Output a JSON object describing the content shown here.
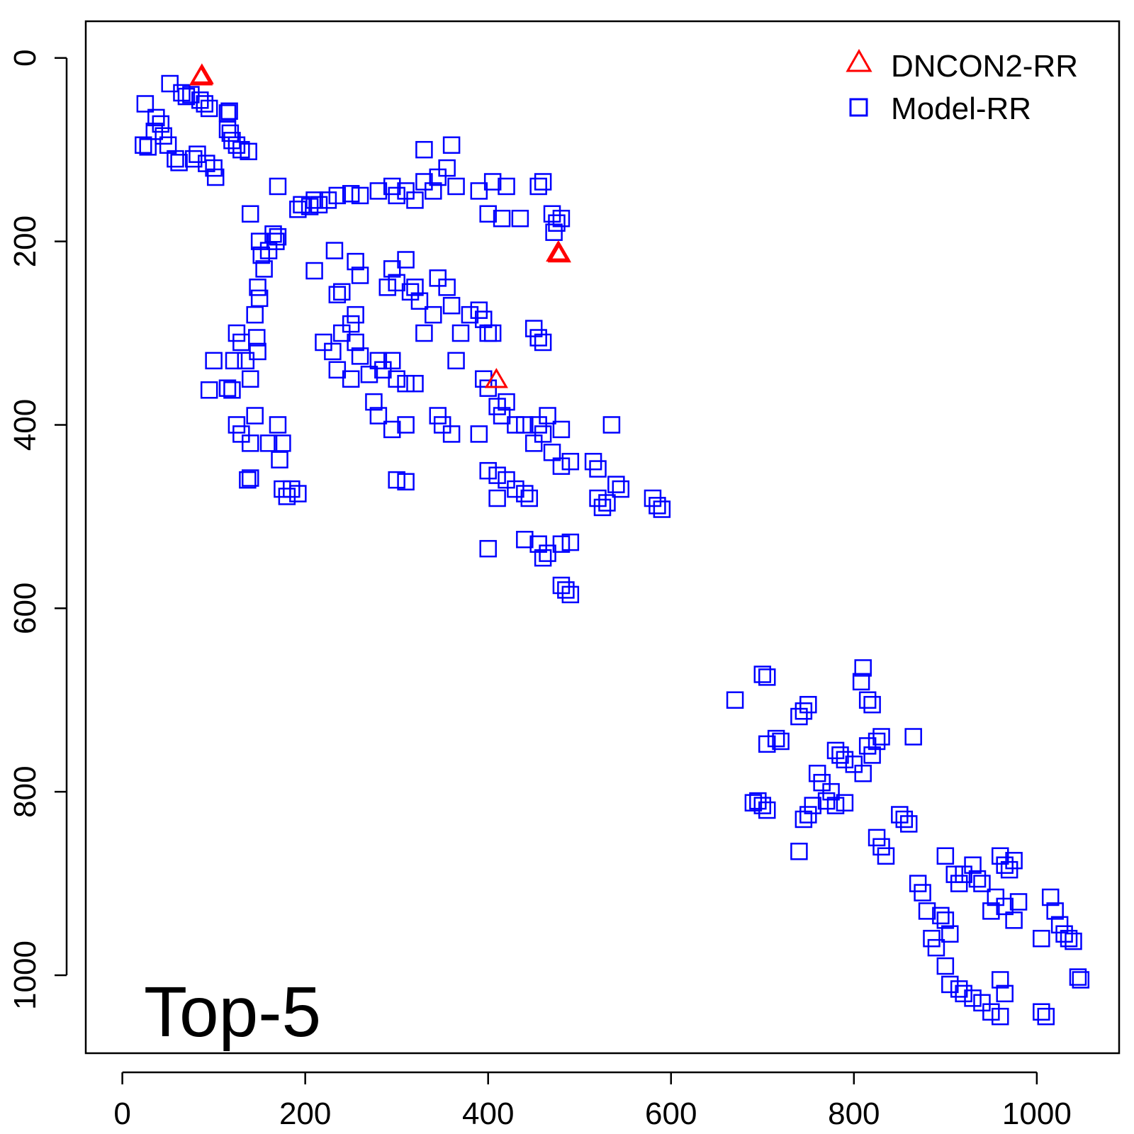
{
  "chart_data": {
    "type": "scatter",
    "title": "",
    "xlabel": "",
    "ylabel": "",
    "xlim": [
      -40,
      1090
    ],
    "ylim": [
      1085,
      -40
    ],
    "y_reversed": true,
    "grid": false,
    "annotation": "Top-5",
    "legend": {
      "position": "top-right"
    },
    "x_ticks": [
      0,
      200,
      400,
      600,
      800,
      1000
    ],
    "y_ticks": [
      0,
      200,
      400,
      600,
      800,
      1000
    ],
    "series": [
      {
        "name": "DNCON2-RR",
        "marker": "triangle",
        "color": "#ff0000",
        "points": [
          [
            87,
            19
          ],
          [
            87,
            20
          ],
          [
            86,
            21
          ],
          [
            477,
            212
          ],
          [
            476,
            213
          ],
          [
            478,
            214
          ],
          [
            409,
            351
          ]
        ]
      },
      {
        "name": "Model-RR",
        "marker": "square",
        "color": "#0000ff",
        "points": [
          [
            25,
            50
          ],
          [
            23,
            95
          ],
          [
            28,
            97
          ],
          [
            35,
            80
          ],
          [
            37,
            65
          ],
          [
            42,
            72
          ],
          [
            45,
            85
          ],
          [
            50,
            95
          ],
          [
            52,
            28
          ],
          [
            58,
            110
          ],
          [
            62,
            114
          ],
          [
            65,
            38
          ],
          [
            70,
            42
          ],
          [
            75,
            40
          ],
          [
            78,
            110
          ],
          [
            82,
            105
          ],
          [
            85,
            46
          ],
          [
            90,
            50
          ],
          [
            92,
            115
          ],
          [
            95,
            55
          ],
          [
            100,
            120
          ],
          [
            102,
            130
          ],
          [
            115,
            60
          ],
          [
            117,
            58
          ],
          [
            115,
            78
          ],
          [
            118,
            82
          ],
          [
            120,
            90
          ],
          [
            125,
            95
          ],
          [
            130,
            100
          ],
          [
            138,
            102
          ],
          [
            140,
            170
          ],
          [
            150,
            200
          ],
          [
            152,
            215
          ],
          [
            155,
            230
          ],
          [
            148,
            250
          ],
          [
            150,
            262
          ],
          [
            145,
            280
          ],
          [
            147,
            305
          ],
          [
            148,
            320
          ],
          [
            125,
            300
          ],
          [
            122,
            330
          ],
          [
            130,
            310
          ],
          [
            135,
            330
          ],
          [
            140,
            350
          ],
          [
            115,
            360
          ],
          [
            120,
            362
          ],
          [
            100,
            330
          ],
          [
            95,
            362
          ],
          [
            125,
            400
          ],
          [
            130,
            410
          ],
          [
            140,
            420
          ],
          [
            145,
            390
          ],
          [
            137,
            460
          ],
          [
            140,
            458
          ],
          [
            160,
            420
          ],
          [
            170,
            400
          ],
          [
            175,
            420
          ],
          [
            172,
            438
          ],
          [
            165,
            192
          ],
          [
            168,
            200
          ],
          [
            160,
            210
          ],
          [
            170,
            195
          ],
          [
            175,
            470
          ],
          [
            180,
            478
          ],
          [
            185,
            470
          ],
          [
            192,
            475
          ],
          [
            170,
            140
          ],
          [
            192,
            165
          ],
          [
            196,
            160
          ],
          [
            205,
            162
          ],
          [
            210,
            155
          ],
          [
            215,
            160
          ],
          [
            225,
            155
          ],
          [
            235,
            150
          ],
          [
            250,
            148
          ],
          [
            260,
            150
          ],
          [
            280,
            145
          ],
          [
            295,
            140
          ],
          [
            300,
            150
          ],
          [
            310,
            145
          ],
          [
            320,
            155
          ],
          [
            330,
            135
          ],
          [
            340,
            145
          ],
          [
            345,
            130
          ],
          [
            355,
            120
          ],
          [
            360,
            95
          ],
          [
            330,
            100
          ],
          [
            365,
            140
          ],
          [
            390,
            145
          ],
          [
            400,
            170
          ],
          [
            405,
            135
          ],
          [
            420,
            140
          ],
          [
            415,
            175
          ],
          [
            435,
            175
          ],
          [
            455,
            140
          ],
          [
            460,
            135
          ],
          [
            470,
            170
          ],
          [
            475,
            180
          ],
          [
            480,
            175
          ],
          [
            472,
            190
          ],
          [
            210,
            232
          ],
          [
            232,
            210
          ],
          [
            240,
            255
          ],
          [
            255,
            222
          ],
          [
            260,
            237
          ],
          [
            235,
            258
          ],
          [
            220,
            310
          ],
          [
            230,
            320
          ],
          [
            240,
            300
          ],
          [
            250,
            290
          ],
          [
            255,
            310
          ],
          [
            260,
            325
          ],
          [
            235,
            340
          ],
          [
            250,
            350
          ],
          [
            255,
            280
          ],
          [
            270,
            345
          ],
          [
            280,
            330
          ],
          [
            285,
            340
          ],
          [
            295,
            330
          ],
          [
            300,
            350
          ],
          [
            310,
            355
          ],
          [
            320,
            355
          ],
          [
            275,
            375
          ],
          [
            280,
            390
          ],
          [
            295,
            405
          ],
          [
            310,
            400
          ],
          [
            290,
            250
          ],
          [
            295,
            230
          ],
          [
            300,
            245
          ],
          [
            310,
            220
          ],
          [
            315,
            255
          ],
          [
            320,
            250
          ],
          [
            325,
            265
          ],
          [
            330,
            300
          ],
          [
            340,
            280
          ],
          [
            345,
            240
          ],
          [
            355,
            250
          ],
          [
            360,
            270
          ],
          [
            370,
            300
          ],
          [
            365,
            330
          ],
          [
            380,
            280
          ],
          [
            390,
            275
          ],
          [
            395,
            285
          ],
          [
            400,
            300
          ],
          [
            405,
            300
          ],
          [
            395,
            350
          ],
          [
            400,
            360
          ],
          [
            410,
            380
          ],
          [
            415,
            390
          ],
          [
            420,
            375
          ],
          [
            430,
            400
          ],
          [
            440,
            400
          ],
          [
            345,
            390
          ],
          [
            350,
            400
          ],
          [
            360,
            410
          ],
          [
            390,
            410
          ],
          [
            400,
            450
          ],
          [
            410,
            455
          ],
          [
            420,
            460
          ],
          [
            430,
            470
          ],
          [
            410,
            480
          ],
          [
            440,
            475
          ],
          [
            445,
            480
          ],
          [
            450,
            420
          ],
          [
            455,
            400
          ],
          [
            460,
            410
          ],
          [
            465,
            390
          ],
          [
            470,
            430
          ],
          [
            480,
            405
          ],
          [
            480,
            445
          ],
          [
            490,
            440
          ],
          [
            300,
            460
          ],
          [
            310,
            462
          ],
          [
            400,
            535
          ],
          [
            440,
            525
          ],
          [
            455,
            530
          ],
          [
            460,
            545
          ],
          [
            465,
            540
          ],
          [
            480,
            530
          ],
          [
            490,
            528
          ],
          [
            450,
            295
          ],
          [
            455,
            305
          ],
          [
            460,
            310
          ],
          [
            480,
            575
          ],
          [
            485,
            580
          ],
          [
            490,
            585
          ],
          [
            515,
            440
          ],
          [
            520,
            448
          ],
          [
            520,
            480
          ],
          [
            525,
            490
          ],
          [
            530,
            485
          ],
          [
            535,
            400
          ],
          [
            540,
            465
          ],
          [
            545,
            470
          ],
          [
            580,
            480
          ],
          [
            585,
            488
          ],
          [
            590,
            492
          ],
          [
            670,
            700
          ],
          [
            700,
            672
          ],
          [
            705,
            675
          ],
          [
            740,
            718
          ],
          [
            745,
            712
          ],
          [
            750,
            705
          ],
          [
            690,
            812
          ],
          [
            695,
            810
          ],
          [
            700,
            815
          ],
          [
            705,
            820
          ],
          [
            740,
            865
          ],
          [
            745,
            830
          ],
          [
            750,
            825
          ],
          [
            755,
            815
          ],
          [
            705,
            748
          ],
          [
            715,
            742
          ],
          [
            720,
            745
          ],
          [
            760,
            780
          ],
          [
            765,
            790
          ],
          [
            770,
            810
          ],
          [
            775,
            800
          ],
          [
            780,
            815
          ],
          [
            790,
            812
          ],
          [
            780,
            755
          ],
          [
            785,
            760
          ],
          [
            790,
            765
          ],
          [
            800,
            770
          ],
          [
            810,
            780
          ],
          [
            815,
            750
          ],
          [
            820,
            760
          ],
          [
            825,
            745
          ],
          [
            830,
            740
          ],
          [
            810,
            665
          ],
          [
            808,
            680
          ],
          [
            815,
            700
          ],
          [
            820,
            705
          ],
          [
            825,
            850
          ],
          [
            830,
            860
          ],
          [
            835,
            870
          ],
          [
            850,
            825
          ],
          [
            855,
            830
          ],
          [
            860,
            835
          ],
          [
            865,
            740
          ],
          [
            870,
            900
          ],
          [
            875,
            910
          ],
          [
            880,
            930
          ],
          [
            885,
            960
          ],
          [
            890,
            970
          ],
          [
            895,
            935
          ],
          [
            900,
            940
          ],
          [
            905,
            955
          ],
          [
            900,
            870
          ],
          [
            910,
            890
          ],
          [
            915,
            900
          ],
          [
            920,
            890
          ],
          [
            930,
            880
          ],
          [
            935,
            895
          ],
          [
            940,
            900
          ],
          [
            900,
            990
          ],
          [
            905,
            1010
          ],
          [
            915,
            1015
          ],
          [
            920,
            1020
          ],
          [
            930,
            1025
          ],
          [
            940,
            1030
          ],
          [
            950,
            1040
          ],
          [
            960,
            1045
          ],
          [
            960,
            870
          ],
          [
            965,
            880
          ],
          [
            970,
            885
          ],
          [
            975,
            875
          ],
          [
            960,
            1005
          ],
          [
            965,
            1020
          ],
          [
            950,
            930
          ],
          [
            955,
            915
          ],
          [
            965,
            925
          ],
          [
            975,
            940
          ],
          [
            980,
            920
          ],
          [
            1005,
            1040
          ],
          [
            1010,
            1045
          ],
          [
            1015,
            915
          ],
          [
            1020,
            930
          ],
          [
            1025,
            945
          ],
          [
            1030,
            955
          ],
          [
            1035,
            960
          ],
          [
            1040,
            963
          ],
          [
            1005,
            960
          ],
          [
            1045,
            1002
          ],
          [
            1048,
            1005
          ]
        ]
      }
    ]
  }
}
